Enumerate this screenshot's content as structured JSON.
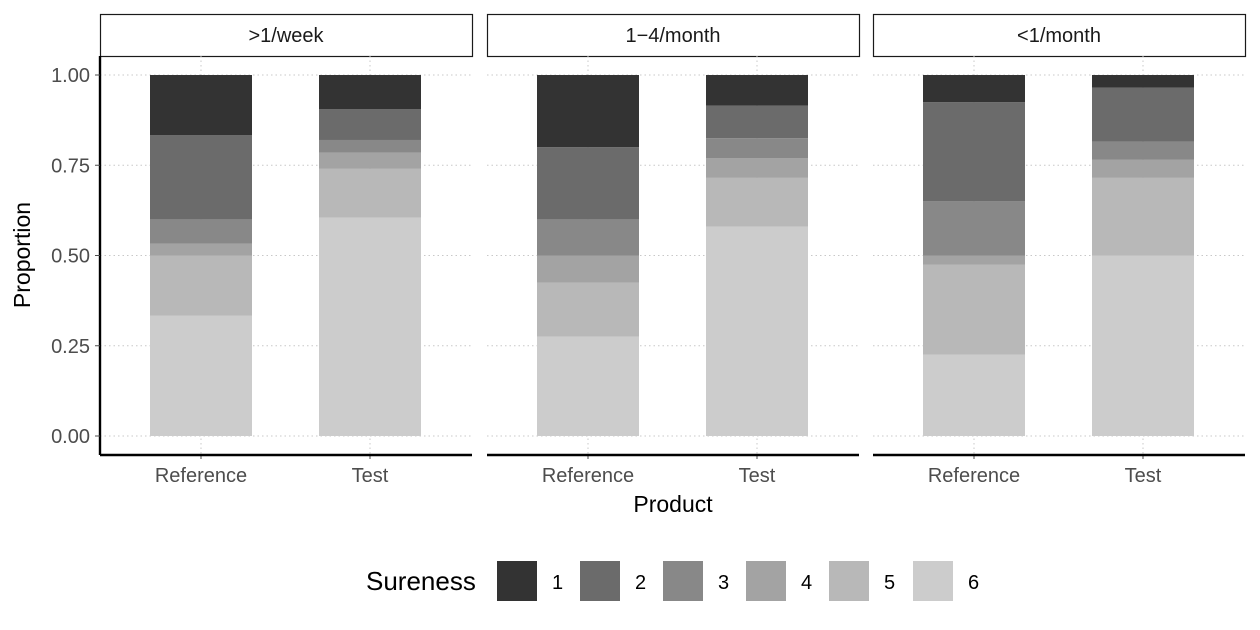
{
  "chart_data": {
    "type": "bar",
    "stacked": true,
    "xlabel": "Product",
    "ylabel": "Proportion",
    "ylim": [
      0,
      1
    ],
    "yticks": [
      "0.00",
      "0.25",
      "0.50",
      "0.75",
      "1.00"
    ],
    "ytick_values": [
      0,
      0.25,
      0.5,
      0.75,
      1.0
    ],
    "grid": "dotted",
    "categories": [
      "Reference",
      "Test"
    ],
    "legend": {
      "title": "Sureness",
      "position": "bottom",
      "levels": [
        "1",
        "2",
        "3",
        "4",
        "5",
        "6"
      ],
      "colors": [
        "#333333",
        "#6b6b6b",
        "#888888",
        "#a3a3a3",
        "#b8b8b8",
        "#cccccc"
      ]
    },
    "stack_order_bottom_to_top": [
      "6",
      "5",
      "4",
      "3",
      "2",
      "1"
    ],
    "facets": [
      {
        "label": ">1/week",
        "bars": [
          {
            "category": "Reference",
            "values": {
              "1": 0.167,
              "2": 0.233,
              "3": 0.067,
              "4": 0.033,
              "5": 0.167,
              "6": 0.333
            }
          },
          {
            "category": "Test",
            "values": {
              "1": 0.095,
              "2": 0.085,
              "3": 0.035,
              "4": 0.045,
              "5": 0.135,
              "6": 0.605
            }
          }
        ]
      },
      {
        "label": "1−4/month",
        "bars": [
          {
            "category": "Reference",
            "values": {
              "1": 0.2,
              "2": 0.2,
              "3": 0.1,
              "4": 0.075,
              "5": 0.15,
              "6": 0.275
            }
          },
          {
            "category": "Test",
            "values": {
              "1": 0.085,
              "2": 0.09,
              "3": 0.055,
              "4": 0.055,
              "5": 0.135,
              "6": 0.58
            }
          }
        ]
      },
      {
        "label": "<1/month",
        "bars": [
          {
            "category": "Reference",
            "values": {
              "1": 0.075,
              "2": 0.275,
              "3": 0.15,
              "4": 0.025,
              "5": 0.25,
              "6": 0.225
            }
          },
          {
            "category": "Test",
            "values": {
              "1": 0.035,
              "2": 0.15,
              "3": 0.05,
              "4": 0.05,
              "5": 0.215,
              "6": 0.5
            }
          }
        ]
      }
    ]
  }
}
